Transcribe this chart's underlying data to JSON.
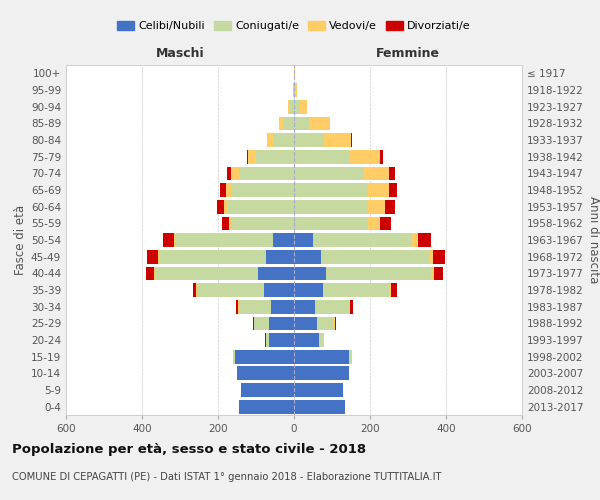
{
  "age_groups": [
    "0-4",
    "5-9",
    "10-14",
    "15-19",
    "20-24",
    "25-29",
    "30-34",
    "35-39",
    "40-44",
    "45-49",
    "50-54",
    "55-59",
    "60-64",
    "65-69",
    "70-74",
    "75-79",
    "80-84",
    "85-89",
    "90-94",
    "95-99",
    "100+"
  ],
  "birth_years": [
    "2013-2017",
    "2008-2012",
    "2003-2007",
    "1998-2002",
    "1993-1997",
    "1988-1992",
    "1983-1987",
    "1978-1982",
    "1973-1977",
    "1968-1972",
    "1963-1967",
    "1958-1962",
    "1953-1957",
    "1948-1952",
    "1943-1947",
    "1938-1942",
    "1933-1937",
    "1928-1932",
    "1923-1927",
    "1918-1922",
    "≤ 1917"
  ],
  "male_celibe": [
    145,
    140,
    150,
    155,
    65,
    65,
    60,
    80,
    95,
    75,
    55,
    0,
    0,
    0,
    0,
    0,
    0,
    0,
    0,
    0,
    0
  ],
  "male_coniugato": [
    0,
    0,
    0,
    5,
    10,
    40,
    85,
    175,
    270,
    280,
    255,
    165,
    175,
    165,
    145,
    100,
    55,
    30,
    10,
    2,
    0
  ],
  "male_vedovo": [
    0,
    0,
    0,
    0,
    0,
    1,
    2,
    2,
    3,
    3,
    5,
    5,
    10,
    15,
    20,
    20,
    15,
    10,
    5,
    0,
    0
  ],
  "male_divorziato": [
    0,
    0,
    0,
    0,
    1,
    2,
    5,
    10,
    22,
    28,
    30,
    20,
    18,
    15,
    12,
    5,
    2,
    0,
    0,
    0,
    0
  ],
  "female_celibe": [
    135,
    130,
    145,
    145,
    65,
    60,
    55,
    75,
    85,
    70,
    50,
    0,
    0,
    0,
    0,
    0,
    0,
    0,
    0,
    0,
    0
  ],
  "female_coniugata": [
    0,
    0,
    0,
    8,
    12,
    45,
    90,
    175,
    275,
    285,
    260,
    195,
    195,
    195,
    185,
    145,
    80,
    40,
    15,
    3,
    0
  ],
  "female_vedova": [
    0,
    0,
    0,
    0,
    1,
    2,
    3,
    5,
    8,
    10,
    15,
    30,
    45,
    55,
    65,
    80,
    70,
    55,
    20,
    5,
    2
  ],
  "female_divorziata": [
    0,
    0,
    0,
    0,
    1,
    3,
    8,
    15,
    25,
    32,
    35,
    30,
    25,
    20,
    15,
    8,
    2,
    0,
    0,
    0,
    0
  ],
  "colors": {
    "celibe": "#4472C4",
    "coniugato": "#C5D9A0",
    "vedovo": "#FFCC66",
    "divorziato": "#CC0000"
  },
  "title1": "Popolazione per età, sesso e stato civile - 2018",
  "title2": "COMUNE DI CEPAGATTI (PE) - Dati ISTAT 1° gennaio 2018 - Elaborazione TUTTITALIA.IT",
  "xlabel_left": "Maschi",
  "xlabel_right": "Femmine",
  "ylabel_left": "Fasce di età",
  "ylabel_right": "Anni di nascita",
  "xlim": 600,
  "bg_color": "#f0f0f0",
  "plot_bg": "#ffffff"
}
